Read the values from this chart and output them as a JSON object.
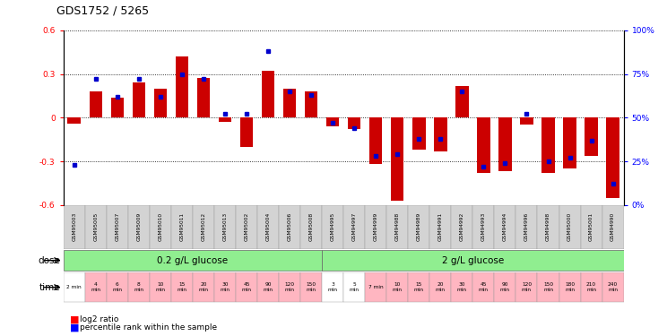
{
  "title": "GDS1752 / 5265",
  "samples": [
    "GSM95003",
    "GSM95005",
    "GSM95007",
    "GSM95009",
    "GSM95010",
    "GSM95011",
    "GSM95012",
    "GSM95013",
    "GSM95002",
    "GSM95004",
    "GSM95006",
    "GSM95008",
    "GSM94995",
    "GSM94997",
    "GSM94999",
    "GSM94988",
    "GSM94989",
    "GSM94991",
    "GSM94992",
    "GSM94993",
    "GSM94994",
    "GSM94996",
    "GSM94998",
    "GSM95000",
    "GSM95001",
    "GSM94990"
  ],
  "log2_ratio": [
    -0.04,
    0.18,
    0.14,
    0.24,
    0.2,
    0.42,
    0.27,
    -0.03,
    -0.2,
    0.32,
    0.2,
    0.18,
    -0.06,
    -0.08,
    -0.32,
    -0.57,
    -0.22,
    -0.23,
    0.22,
    -0.38,
    -0.37,
    -0.05,
    -0.38,
    -0.35,
    -0.26,
    -0.55
  ],
  "percentile": [
    23,
    72,
    62,
    72,
    62,
    75,
    72,
    52,
    52,
    88,
    65,
    63,
    47,
    44,
    28,
    29,
    38,
    38,
    65,
    22,
    24,
    52,
    25,
    27,
    37,
    12
  ],
  "dose_groups": [
    {
      "label": "0.2 g/L glucose",
      "color": "#90EE90",
      "start": 0,
      "end": 12
    },
    {
      "label": "2 g/L glucose",
      "color": "#90EE90",
      "start": 12,
      "end": 26
    }
  ],
  "time_labels": [
    "2 min",
    "4\nmin",
    "6\nmin",
    "8\nmin",
    "10\nmin",
    "15\nmin",
    "20\nmin",
    "30\nmin",
    "45\nmin",
    "90\nmin",
    "120\nmin",
    "150\nmin",
    "3\nmin",
    "5\nmin",
    "7 min",
    "10\nmin",
    "15\nmin",
    "20\nmin",
    "30\nmin",
    "45\nmin",
    "90\nmin",
    "120\nmin",
    "150\nmin",
    "180\nmin",
    "210\nmin",
    "240\nmin"
  ],
  "time_colors": [
    "#FFFFFF",
    "#FFB6C1",
    "#FFB6C1",
    "#FFB6C1",
    "#FFB6C1",
    "#FFB6C1",
    "#FFB6C1",
    "#FFB6C1",
    "#FFB6C1",
    "#FFB6C1",
    "#FFB6C1",
    "#FFB6C1",
    "#FFFFFF",
    "#FFFFFF",
    "#FFB6C1",
    "#FFB6C1",
    "#FFB6C1",
    "#FFB6C1",
    "#FFB6C1",
    "#FFB6C1",
    "#FFB6C1",
    "#FFB6C1",
    "#FFB6C1",
    "#FFB6C1",
    "#FFB6C1",
    "#FFB6C1"
  ],
  "ylim": [
    -0.6,
    0.6
  ],
  "yticks_left": [
    -0.6,
    -0.3,
    0.0,
    0.3,
    0.6
  ],
  "bar_color": "#CC0000",
  "dot_color": "#0000CC",
  "background_color": "#FFFFFF",
  "dose_divider": 12,
  "n_samples": 26
}
